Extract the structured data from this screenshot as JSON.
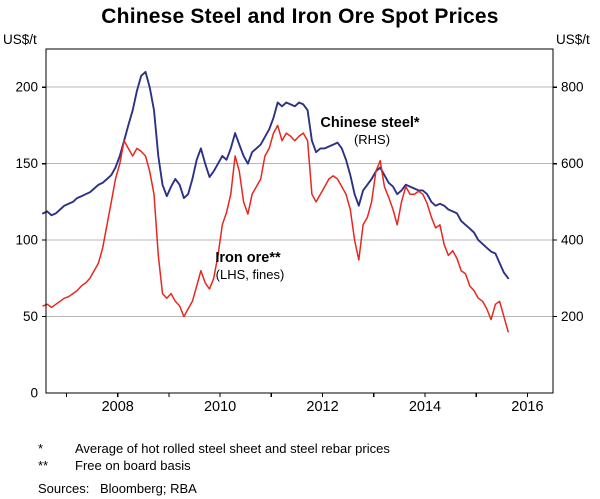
{
  "chart_data": {
    "type": "line",
    "title": "Chinese Steel and Iron Ore Spot Prices",
    "left_axis": {
      "unit": "US$/t",
      "ticks": [
        0,
        50,
        100,
        150,
        200
      ],
      "range": [
        0,
        225
      ]
    },
    "right_axis": {
      "unit": "US$/t",
      "ticks": [
        200,
        400,
        600,
        800
      ],
      "range": [
        0,
        900
      ]
    },
    "x_axis": {
      "range": [
        2006.6,
        2016.5
      ],
      "labeled_ticks": [
        2008,
        2010,
        2012,
        2014,
        2016
      ],
      "minor_ticks": [
        2007,
        2008,
        2009,
        2010,
        2011,
        2012,
        2013,
        2014,
        2015,
        2016
      ]
    },
    "grid": "horizontal",
    "x": [
      2006.542,
      2006.625,
      2006.708,
      2006.792,
      2006.875,
      2006.958,
      2007.042,
      2007.125,
      2007.208,
      2007.292,
      2007.375,
      2007.458,
      2007.542,
      2007.625,
      2007.708,
      2007.792,
      2007.875,
      2007.958,
      2008.042,
      2008.125,
      2008.208,
      2008.292,
      2008.375,
      2008.458,
      2008.542,
      2008.625,
      2008.708,
      2008.792,
      2008.875,
      2008.958,
      2009.042,
      2009.125,
      2009.208,
      2009.292,
      2009.375,
      2009.458,
      2009.542,
      2009.625,
      2009.708,
      2009.792,
      2009.875,
      2009.958,
      2010.042,
      2010.125,
      2010.208,
      2010.292,
      2010.375,
      2010.458,
      2010.542,
      2010.625,
      2010.708,
      2010.792,
      2010.875,
      2010.958,
      2011.042,
      2011.125,
      2011.208,
      2011.292,
      2011.375,
      2011.458,
      2011.542,
      2011.625,
      2011.708,
      2011.792,
      2011.875,
      2011.958,
      2012.042,
      2012.125,
      2012.208,
      2012.292,
      2012.375,
      2012.458,
      2012.542,
      2012.625,
      2012.708,
      2012.792,
      2012.875,
      2012.958,
      2013.042,
      2013.125,
      2013.208,
      2013.292,
      2013.375,
      2013.458,
      2013.542,
      2013.625,
      2013.708,
      2013.792,
      2013.875,
      2013.958,
      2014.042,
      2014.125,
      2014.208,
      2014.292,
      2014.375,
      2014.458,
      2014.542,
      2014.625,
      2014.708,
      2014.792,
      2014.875,
      2014.958,
      2015.042,
      2015.125,
      2015.208,
      2015.292,
      2015.375,
      2015.458,
      2015.542,
      2015.625
    ],
    "series": [
      {
        "name": "Chinese steel*",
        "sub": "(RHS)",
        "axis": "right",
        "color": "#2b3287",
        "values": [
          470,
          475,
          465,
          470,
          480,
          490,
          495,
          500,
          510,
          515,
          520,
          525,
          535,
          545,
          550,
          560,
          570,
          590,
          620,
          660,
          700,
          740,
          790,
          830,
          840,
          800,
          740,
          620,
          545,
          515,
          540,
          560,
          545,
          510,
          520,
          560,
          610,
          640,
          600,
          565,
          580,
          600,
          620,
          610,
          640,
          680,
          650,
          620,
          600,
          630,
          640,
          650,
          670,
          690,
          720,
          760,
          750,
          760,
          755,
          750,
          760,
          755,
          740,
          660,
          630,
          640,
          640,
          645,
          650,
          655,
          640,
          610,
          570,
          520,
          490,
          530,
          545,
          560,
          580,
          590,
          570,
          550,
          540,
          520,
          530,
          545,
          540,
          535,
          530,
          530,
          520,
          500,
          490,
          495,
          490,
          480,
          475,
          470,
          450,
          440,
          430,
          420,
          400,
          390,
          380,
          370,
          365,
          340,
          315,
          300
        ]
      },
      {
        "name": "Iron ore**",
        "sub": "(LHS, fines)",
        "axis": "left",
        "color": "#e8271f",
        "values": [
          57,
          58,
          56,
          58,
          60,
          62,
          63,
          65,
          67,
          70,
          72,
          75,
          80,
          85,
          95,
          110,
          125,
          140,
          150,
          165,
          160,
          155,
          160,
          158,
          155,
          145,
          130,
          90,
          65,
          62,
          65,
          60,
          57,
          50,
          55,
          60,
          70,
          80,
          72,
          68,
          75,
          90,
          110,
          118,
          130,
          155,
          145,
          125,
          117,
          130,
          135,
          140,
          155,
          160,
          170,
          175,
          165,
          170,
          168,
          165,
          168,
          170,
          165,
          130,
          125,
          130,
          135,
          140,
          142,
          140,
          135,
          130,
          120,
          100,
          87,
          110,
          115,
          125,
          145,
          152,
          135,
          128,
          120,
          110,
          125,
          135,
          130,
          130,
          132,
          130,
          124,
          115,
          108,
          110,
          97,
          90,
          93,
          88,
          80,
          78,
          70,
          67,
          62,
          60,
          55,
          48,
          58,
          60,
          50,
          40
        ]
      }
    ]
  },
  "footnotes": [
    {
      "marker": "*",
      "text": "Average of hot rolled steel sheet and steel rebar prices"
    },
    {
      "marker": "**",
      "text": "Free on board basis"
    }
  ],
  "sources": {
    "label": "Sources:",
    "text": "Bloomberg; RBA"
  }
}
